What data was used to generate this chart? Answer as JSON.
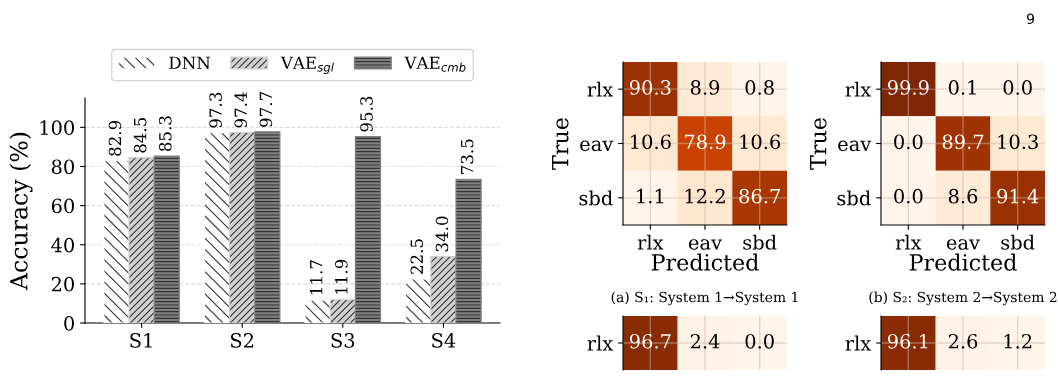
{
  "chart_data": [
    {
      "type": "bar",
      "ylabel": "Accuracy (%)",
      "categories": [
        "S1",
        "S2",
        "S3",
        "S4"
      ],
      "series": [
        {
          "name": "DNN",
          "color": "#ffffff",
          "values": [
            82.9,
            97.3,
            11.7,
            22.5
          ],
          "value_labels": [
            "82.9",
            "97.3",
            "11.7",
            "22.5"
          ]
        },
        {
          "name": "VAE$_{sgl}$",
          "color": "#d0d0d0",
          "values": [
            84.5,
            97.4,
            11.9,
            34.0
          ],
          "value_labels": [
            "84.5",
            "97.4",
            "11.9",
            "34.0"
          ]
        },
        {
          "name": "VAE$_{cmb}$",
          "color": "#808080",
          "values": [
            85.3,
            97.7,
            95.3,
            73.5
          ],
          "value_labels": [
            "85.3",
            "97.7",
            "95.3",
            "73.5"
          ]
        }
      ],
      "ylim": [
        0,
        115
      ],
      "yticks": [
        0,
        20,
        40,
        60,
        80,
        100
      ],
      "grid": "y",
      "legend": "top",
      "data_labels": true,
      "annotations": [
        "9"
      ]
    },
    {
      "type": "heatmap",
      "xlabel": "Predicted",
      "ylabel": "True",
      "categories": [
        "rlx",
        "eav",
        "sbd"
      ],
      "y_categories": [
        "rlx",
        "eav",
        "sbd"
      ],
      "cells": [
        [
          90.3,
          8.9,
          0.8
        ],
        [
          10.6,
          78.9,
          10.6
        ],
        [
          1.1,
          12.2,
          86.7
        ]
      ],
      "cell_labels": [
        [
          "90.3",
          "8.9",
          "0.8"
        ],
        [
          "10.6",
          "78.9",
          "10.6"
        ],
        [
          "1.1",
          "12.2",
          "86.7"
        ]
      ],
      "grid": true,
      "annotations": [
        "(a) S₁: System 1→System 1"
      ]
    },
    {
      "type": "heatmap",
      "xlabel": "Predicted",
      "ylabel": "True",
      "categories": [
        "rlx",
        "eav",
        "sbd"
      ],
      "y_categories": [
        "rlx",
        "eav",
        "sbd"
      ],
      "cells": [
        [
          99.9,
          0.1,
          0.0
        ],
        [
          0.0,
          89.7,
          10.3
        ],
        [
          0.0,
          8.6,
          91.4
        ]
      ],
      "cell_labels": [
        [
          "99.9",
          "0.1",
          "0.0"
        ],
        [
          "0.0",
          "89.7",
          "10.3"
        ],
        [
          "0.0",
          "8.6",
          "91.4"
        ]
      ],
      "grid": true,
      "annotations": [
        "(b) S₂: System 2→System 2"
      ]
    },
    {
      "type": "heatmap",
      "categories": [
        null,
        null,
        null
      ],
      "y_categories": [
        "rlx"
      ],
      "cells": [
        [
          96.7,
          2.4,
          0.0
        ]
      ],
      "cell_labels": [
        [
          "96.7",
          "2.4",
          "0.0"
        ]
      ],
      "grid": true,
      "tick_labels": "y"
    },
    {
      "type": "heatmap",
      "categories": [
        null,
        null,
        null
      ],
      "y_categories": [
        "rlx"
      ],
      "cells": [
        [
          96.1,
          2.6,
          1.2
        ]
      ],
      "cell_labels": [
        [
          "96.1",
          "2.6",
          "1.2"
        ]
      ],
      "grid": true,
      "tick_labels": "y"
    }
  ]
}
